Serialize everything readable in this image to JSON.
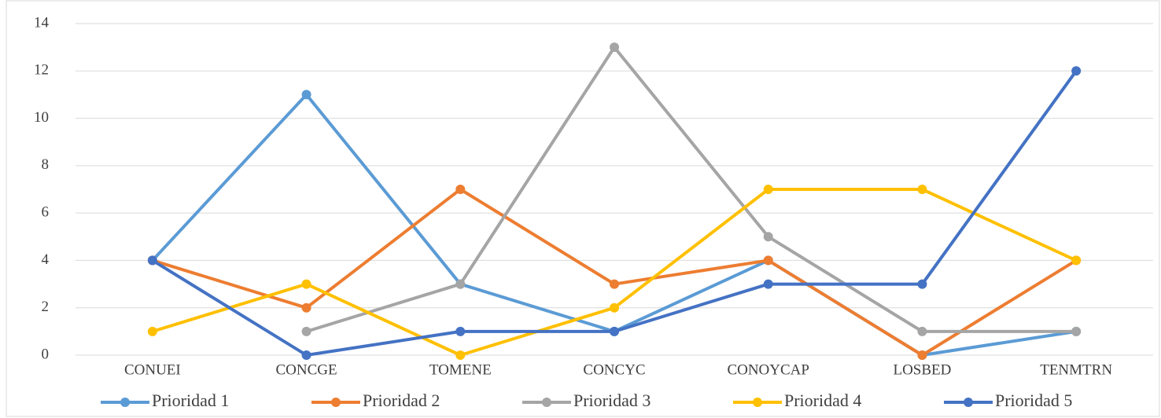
{
  "chart_data": {
    "type": "line",
    "categories": [
      "CONUEI",
      "CONCGE",
      "TOMENE",
      "CONCYC",
      "CONOYCAP",
      "LOSBED",
      "TENMTRN"
    ],
    "series": [
      {
        "name": "Prioridad 1",
        "color": "#5b9bd5",
        "values": [
          4,
          11,
          3,
          1,
          4,
          0,
          1
        ]
      },
      {
        "name": "Prioridad 2",
        "color": "#ed7d31",
        "values": [
          4,
          2,
          7,
          3,
          4,
          0,
          4
        ]
      },
      {
        "name": "Prioridad 3",
        "color": "#a5a5a5",
        "values": [
          null,
          1,
          3,
          13,
          5,
          1,
          1
        ]
      },
      {
        "name": "Prioridad 4",
        "color": "#ffc000",
        "values": [
          1,
          3,
          0,
          2,
          7,
          7,
          4
        ]
      },
      {
        "name": "Prioridad 5",
        "color": "#4472c4",
        "values": [
          4,
          0,
          1,
          1,
          3,
          3,
          12
        ]
      }
    ],
    "ylim": [
      0,
      14
    ],
    "yticks": [
      0,
      2,
      4,
      6,
      8,
      10,
      12,
      14
    ],
    "grid": true,
    "legend": "bottom"
  }
}
